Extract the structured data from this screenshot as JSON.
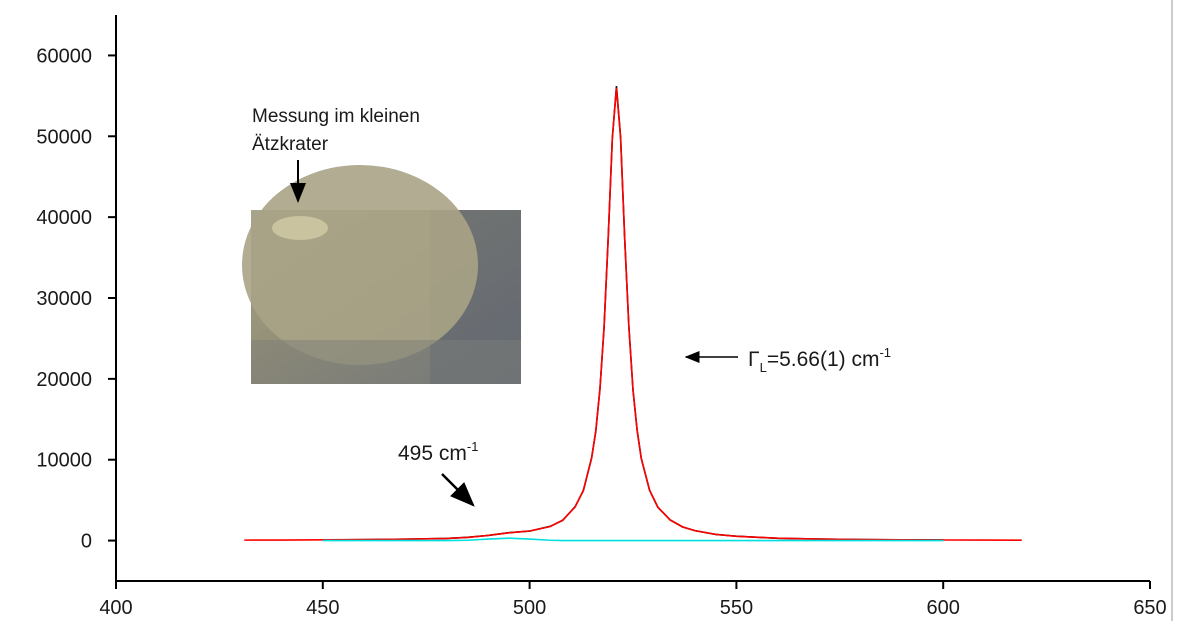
{
  "chart_data": {
    "type": "line",
    "x": [
      431,
      440,
      450,
      460,
      470,
      480,
      485,
      490,
      495,
      500,
      505,
      508,
      511,
      513,
      515,
      516,
      517,
      518,
      519,
      520,
      521,
      522,
      523,
      524,
      525,
      526,
      527,
      529,
      531,
      534,
      537,
      540,
      545,
      550,
      560,
      570,
      580,
      590,
      600,
      610,
      619
    ],
    "series": [
      {
        "color": "#000000",
        "values": [
          null,
          null,
          80,
          110,
          180,
          260,
          400,
          630,
          970,
          1170,
          1760,
          2500,
          4190,
          6180,
          10250,
          13500,
          18700,
          26300,
          37400,
          49700,
          56200,
          49900,
          37200,
          26500,
          18600,
          13650,
          10150,
          6250,
          4120,
          2550,
          1680,
          1230,
          760,
          540,
          280,
          190,
          120,
          90,
          75,
          null,
          null
        ]
      },
      {
        "color": "#ff0000",
        "values": [
          55,
          68,
          89,
          120,
          172,
          269,
          385,
          645,
          956,
          1182,
          1737,
          2530,
          4148,
          6222,
          10182,
          13592,
          18667,
          26415,
          37333,
          49778,
          56000,
          49778,
          37333,
          26415,
          18667,
          13592,
          10182,
          6222,
          4148,
          2530,
          1697,
          1217,
          767,
          528,
          294,
          186,
          129,
          94,
          72,
          57,
          47
        ]
      },
      {
        "color": "#00e0e0",
        "values": [
          null,
          null,
          0,
          0,
          0,
          3,
          40,
          182,
          300,
          182,
          40,
          6,
          0,
          0,
          0,
          0,
          0,
          0,
          0,
          0,
          0,
          0,
          0,
          0,
          0,
          0,
          0,
          0,
          0,
          0,
          0,
          0,
          0,
          0,
          0,
          0,
          0,
          0,
          0,
          null,
          null
        ]
      }
    ],
    "xlim": [
      400,
      650
    ],
    "xticks": [
      400,
      450,
      500,
      550,
      600,
      650
    ],
    "ylim": [
      -5000,
      65000
    ],
    "yticks": [
      0,
      10000,
      20000,
      30000,
      40000,
      50000,
      60000
    ],
    "inset_label": [
      "Messung im kleinen",
      "Ätzkrater"
    ],
    "annotations": [
      {
        "text": "495 cm",
        "sup": "-1"
      },
      {
        "text": "Γ",
        "sub": "L",
        "text2": "=5.66(1) cm",
        "sup": "-1"
      }
    ]
  }
}
